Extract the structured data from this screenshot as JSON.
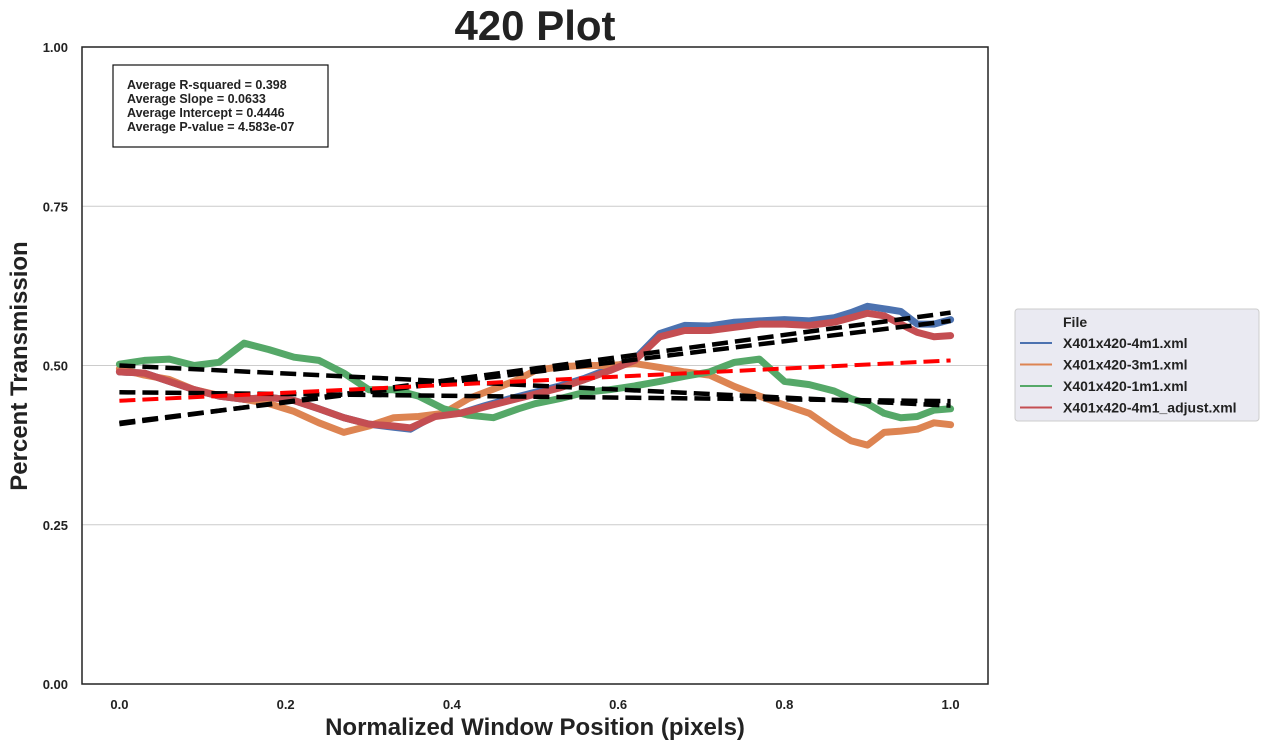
{
  "chart_data": {
    "type": "line",
    "title": "420 Plot",
    "xlabel": "Normalized Window Position (pixels)",
    "ylabel": "Percent Transmission",
    "xlim": [
      -0.045,
      1.045
    ],
    "ylim": [
      0.0,
      1.0
    ],
    "x_ticks": [
      0.0,
      0.2,
      0.4,
      0.6,
      0.8,
      1.0
    ],
    "x_tick_labels": [
      "0.0",
      "0.2",
      "0.4",
      "0.6",
      "0.8",
      "1.0"
    ],
    "y_ticks": [
      0.0,
      0.25,
      0.5,
      0.75,
      1.0
    ],
    "y_tick_labels": [
      "0.00",
      "0.25",
      "0.50",
      "0.75",
      "1.00"
    ],
    "grid": "horizontal",
    "stats": {
      "lines": [
        "Average R-squared = 0.398",
        "Average Slope = 0.0633",
        "Average Intercept = 0.4446",
        "Average P-value = 4.583e-07"
      ],
      "placement": "top-left"
    },
    "legend": {
      "title": "File",
      "placement": "outside-right"
    },
    "series": [
      {
        "name": "X401x420-4m1.xml",
        "color": "#4c72b0",
        "x": [
          0.0,
          0.03,
          0.06,
          0.09,
          0.12,
          0.15,
          0.18,
          0.21,
          0.24,
          0.27,
          0.3,
          0.33,
          0.35,
          0.38,
          0.41,
          0.44,
          0.47,
          0.5,
          0.53,
          0.56,
          0.59,
          0.62,
          0.65,
          0.68,
          0.71,
          0.74,
          0.77,
          0.8,
          0.83,
          0.86,
          0.88,
          0.9,
          0.92,
          0.94,
          0.96,
          0.98,
          1.0
        ],
        "y": [
          0.49,
          0.488,
          0.475,
          0.462,
          0.452,
          0.447,
          0.45,
          0.445,
          0.432,
          0.418,
          0.408,
          0.403,
          0.4,
          0.422,
          0.425,
          0.437,
          0.448,
          0.458,
          0.468,
          0.48,
          0.495,
          0.51,
          0.55,
          0.563,
          0.562,
          0.568,
          0.57,
          0.572,
          0.57,
          0.575,
          0.583,
          0.593,
          0.589,
          0.585,
          0.565,
          0.565,
          0.572
        ]
      },
      {
        "name": "X401x420-3m1.xml",
        "color": "#dd8452",
        "x": [
          0.0,
          0.03,
          0.06,
          0.09,
          0.12,
          0.15,
          0.18,
          0.21,
          0.24,
          0.27,
          0.3,
          0.33,
          0.36,
          0.39,
          0.42,
          0.45,
          0.48,
          0.5,
          0.53,
          0.56,
          0.59,
          0.62,
          0.65,
          0.68,
          0.71,
          0.74,
          0.77,
          0.8,
          0.83,
          0.86,
          0.88,
          0.9,
          0.92,
          0.94,
          0.96,
          0.98,
          1.0
        ],
        "y": [
          0.495,
          0.485,
          0.478,
          0.462,
          0.453,
          0.447,
          0.44,
          0.428,
          0.41,
          0.395,
          0.405,
          0.418,
          0.42,
          0.425,
          0.448,
          0.463,
          0.478,
          0.492,
          0.498,
          0.5,
          0.5,
          0.503,
          0.497,
          0.49,
          0.485,
          0.467,
          0.452,
          0.438,
          0.425,
          0.398,
          0.382,
          0.375,
          0.395,
          0.397,
          0.4,
          0.41,
          0.407
        ]
      },
      {
        "name": "X401x420-1m1.xml",
        "color": "#55a868",
        "x": [
          0.0,
          0.03,
          0.06,
          0.09,
          0.12,
          0.15,
          0.18,
          0.21,
          0.24,
          0.27,
          0.3,
          0.33,
          0.36,
          0.39,
          0.42,
          0.45,
          0.48,
          0.5,
          0.53,
          0.56,
          0.59,
          0.62,
          0.65,
          0.68,
          0.71,
          0.74,
          0.77,
          0.8,
          0.83,
          0.86,
          0.88,
          0.9,
          0.92,
          0.94,
          0.96,
          0.98,
          1.0
        ],
        "y": [
          0.502,
          0.508,
          0.51,
          0.5,
          0.505,
          0.535,
          0.525,
          0.513,
          0.508,
          0.488,
          0.462,
          0.462,
          0.452,
          0.432,
          0.422,
          0.418,
          0.432,
          0.44,
          0.448,
          0.458,
          0.462,
          0.468,
          0.475,
          0.483,
          0.49,
          0.505,
          0.51,
          0.475,
          0.47,
          0.46,
          0.448,
          0.44,
          0.425,
          0.418,
          0.42,
          0.43,
          0.432
        ]
      },
      {
        "name": "X401x420-4m1_adjust.xml",
        "color": "#c44e52",
        "x": [
          0.0,
          0.03,
          0.06,
          0.09,
          0.12,
          0.15,
          0.18,
          0.21,
          0.24,
          0.27,
          0.3,
          0.33,
          0.35,
          0.38,
          0.41,
          0.44,
          0.47,
          0.5,
          0.53,
          0.56,
          0.59,
          0.62,
          0.65,
          0.68,
          0.71,
          0.74,
          0.77,
          0.8,
          0.83,
          0.86,
          0.88,
          0.9,
          0.92,
          0.94,
          0.96,
          0.98,
          1.0
        ],
        "y": [
          0.49,
          0.488,
          0.475,
          0.462,
          0.452,
          0.447,
          0.45,
          0.445,
          0.432,
          0.418,
          0.408,
          0.405,
          0.402,
          0.42,
          0.425,
          0.435,
          0.445,
          0.455,
          0.465,
          0.478,
          0.492,
          0.508,
          0.545,
          0.555,
          0.555,
          0.56,
          0.565,
          0.565,
          0.563,
          0.568,
          0.575,
          0.582,
          0.578,
          0.565,
          0.552,
          0.545,
          0.547
        ]
      }
    ],
    "fit_lines": [
      {
        "name": "fit-4m1",
        "color": "#000000",
        "x": [
          0.0,
          1.0
        ],
        "y": [
          0.408,
          0.583
        ]
      },
      {
        "name": "fit-4m1-adjust",
        "color": "#000000",
        "x": [
          0.0,
          1.0
        ],
        "y": [
          0.41,
          0.57
        ]
      },
      {
        "name": "fit-3m1",
        "color": "#000000",
        "x": [
          0.0,
          1.0
        ],
        "y": [
          0.5,
          0.437
        ]
      },
      {
        "name": "fit-1m1",
        "color": "#000000",
        "x": [
          0.0,
          1.0
        ],
        "y": [
          0.458,
          0.444
        ]
      },
      {
        "name": "average-fit",
        "color": "#ff0000",
        "x": [
          0.0,
          1.0
        ],
        "y": [
          0.4446,
          0.5079
        ]
      }
    ]
  }
}
